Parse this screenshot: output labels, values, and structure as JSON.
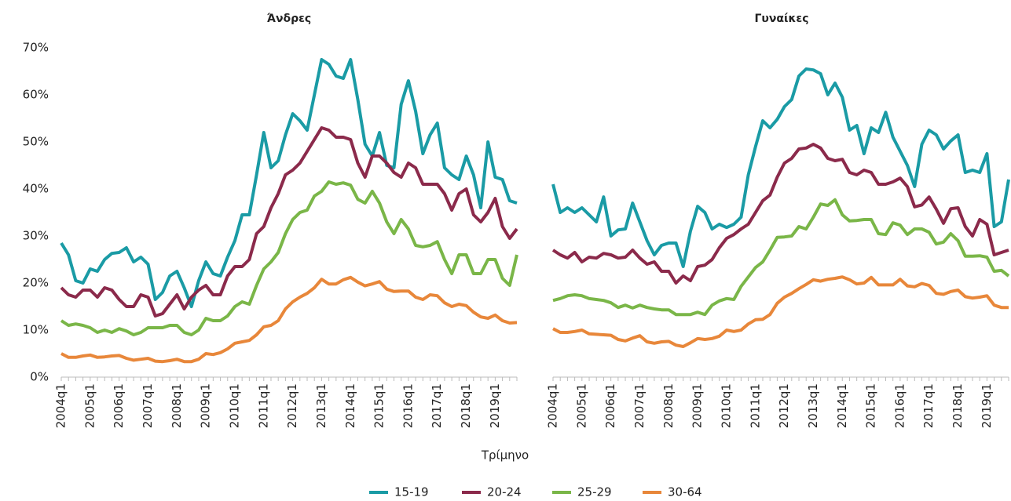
{
  "chart_data": [
    {
      "type": "line",
      "title": "Άνδρες",
      "xlabel": "Τρίμηνο",
      "categories": [
        "2004q1",
        null,
        null,
        null,
        "2005q1",
        null,
        null,
        null,
        "2006q1",
        null,
        null,
        null,
        "2007q1",
        null,
        null,
        null,
        "2008q1",
        null,
        null,
        null,
        "2009q1",
        null,
        null,
        null,
        "2010q1",
        null,
        null,
        null,
        "2011q1",
        null,
        null,
        null,
        "2012q1",
        null,
        null,
        null,
        "2013q1",
        null,
        null,
        null,
        "2014q1",
        null,
        null,
        null,
        "2015q1",
        null,
        null,
        null,
        "2016q1",
        null,
        null,
        null,
        "2017q1",
        null,
        null,
        null,
        "2018q1",
        null,
        null,
        null,
        "2019q1",
        null,
        null,
        null
      ],
      "ylim": [
        0,
        70
      ],
      "yticks": [
        {
          "value": 0,
          "label": "0%"
        },
        {
          "value": 10,
          "label": "10%"
        },
        {
          "value": 20,
          "label": "20%"
        },
        {
          "value": 30,
          "label": "30%"
        },
        {
          "value": 40,
          "label": "40%"
        },
        {
          "value": 50,
          "label": "50%"
        },
        {
          "value": 60,
          "label": "60%"
        },
        {
          "value": 70,
          "label": "70%"
        }
      ],
      "series": [
        {
          "name": "15-19",
          "color": "#1a9ba5",
          "values": [
            28.5,
            26,
            20.5,
            20,
            23,
            22.5,
            25,
            26.3,
            26.5,
            27.5,
            24.5,
            25.5,
            24,
            16.5,
            18,
            21.5,
            22.5,
            19,
            15,
            20.5,
            24.5,
            22,
            21.5,
            25.5,
            29,
            34.5,
            34.5,
            43,
            52,
            44.5,
            46,
            51.5,
            56,
            54.5,
            52.5,
            60,
            67.5,
            66.5,
            64,
            63.5,
            67.5,
            59,
            49.5,
            47,
            52,
            45,
            44.5,
            58,
            63,
            56.5,
            47.5,
            51.5,
            54,
            44.5,
            43,
            42,
            47,
            43,
            36,
            50,
            42.5,
            42,
            37.5,
            37
          ]
        },
        {
          "name": "20-24",
          "color": "#8b2a4b",
          "values": [
            19,
            17.5,
            17,
            18.5,
            18.5,
            17,
            19,
            18.5,
            16.5,
            15,
            15,
            17.5,
            17,
            13,
            13.5,
            15.5,
            17.5,
            14.5,
            17,
            18.5,
            19.5,
            17.5,
            17.5,
            21.5,
            23.5,
            23.5,
            25,
            30.5,
            32,
            36,
            39,
            43,
            44,
            45.5,
            48,
            50.5,
            53,
            52.5,
            51,
            51,
            50.5,
            45.5,
            42.5,
            47,
            47,
            45.5,
            43.5,
            42.5,
            45.5,
            44.5,
            41,
            41,
            41,
            39,
            35.5,
            39,
            40,
            34.5,
            33,
            35,
            38,
            32,
            29.5,
            31.5
          ]
        },
        {
          "name": "25-29",
          "color": "#7ab648",
          "values": [
            12,
            11,
            11.3,
            11,
            10.5,
            9.5,
            10,
            9.5,
            10.3,
            9.8,
            9,
            9.5,
            10.5,
            10.5,
            10.5,
            11,
            11,
            9.5,
            9,
            10,
            12.5,
            12,
            12,
            13,
            15,
            16,
            15.5,
            19.5,
            23,
            24.5,
            26.5,
            30.5,
            33.5,
            35,
            35.5,
            38.5,
            39.5,
            41.5,
            41,
            41.3,
            40.8,
            37.8,
            37,
            39.5,
            37,
            33,
            30.5,
            33.5,
            31.5,
            28,
            27.7,
            28,
            28.8,
            25,
            22,
            26,
            26,
            22,
            22,
            25,
            25,
            21,
            19.5,
            26
          ]
        },
        {
          "name": "30-64",
          "color": "#e8873a",
          "values": [
            5,
            4.2,
            4.2,
            4.5,
            4.7,
            4.2,
            4.3,
            4.5,
            4.6,
            4,
            3.6,
            3.8,
            4,
            3.4,
            3.3,
            3.5,
            3.8,
            3.3,
            3.3,
            3.8,
            5,
            4.8,
            5.2,
            6,
            7.2,
            7.5,
            7.8,
            9,
            10.7,
            11,
            12,
            14.5,
            16,
            17,
            17.8,
            19,
            20.8,
            19.8,
            19.8,
            20.7,
            21.2,
            20.2,
            19.4,
            19.8,
            20.3,
            18.7,
            18.2,
            18.3,
            18.3,
            17,
            16.5,
            17.5,
            17.3,
            15.8,
            15,
            15.5,
            15.2,
            13.8,
            12.8,
            12.5,
            13.2,
            12,
            11.5,
            11.6
          ]
        }
      ]
    },
    {
      "type": "line",
      "title": "Γυναίκες",
      "categories": [
        "2004q1",
        null,
        null,
        null,
        "2005q1",
        null,
        null,
        null,
        "2006q1",
        null,
        null,
        null,
        "2007q1",
        null,
        null,
        null,
        "2008q1",
        null,
        null,
        null,
        "2009q1",
        null,
        null,
        null,
        "2010q1",
        null,
        null,
        null,
        "2011q1",
        null,
        null,
        null,
        "2012q1",
        null,
        null,
        null,
        "2013q1",
        null,
        null,
        null,
        "2014q1",
        null,
        null,
        null,
        "2015q1",
        null,
        null,
        null,
        "2016q1",
        null,
        null,
        null,
        "2017q1",
        null,
        null,
        null,
        "2018q1",
        null,
        null,
        null,
        "2019q1",
        null,
        null,
        null
      ],
      "ylim": [
        0,
        70
      ],
      "series": [
        {
          "name": "15-19",
          "color": "#1a9ba5",
          "values": [
            41,
            35,
            36,
            35,
            36,
            34.5,
            33,
            38.3,
            30,
            31.3,
            31.5,
            37,
            33,
            29,
            26,
            28,
            28.5,
            28.5,
            23.5,
            31,
            36.3,
            35,
            31.5,
            32.5,
            31.8,
            32.5,
            34,
            43,
            49,
            54.5,
            53,
            54.8,
            57.5,
            59,
            64,
            65.5,
            65.3,
            64.5,
            60,
            62.5,
            59.5,
            52.5,
            53.5,
            47.5,
            53,
            52,
            56.3,
            51,
            48,
            45,
            40.5,
            49.5,
            52.5,
            51.5,
            48.5,
            50.2,
            51.5,
            43.5,
            44,
            43.5,
            47.5,
            32,
            33,
            42
          ]
        },
        {
          "name": "20-24",
          "color": "#8b2a4b",
          "values": [
            27,
            26,
            25.3,
            26.5,
            24.5,
            25.5,
            25.3,
            26.3,
            26,
            25.3,
            25.5,
            27,
            25.3,
            24,
            24.5,
            22.5,
            22.5,
            20,
            21.5,
            20.5,
            23.5,
            23.8,
            25,
            27.5,
            29.5,
            30.3,
            31.5,
            32.5,
            35,
            37.5,
            38.7,
            42.5,
            45.5,
            46.5,
            48.5,
            48.7,
            49.5,
            48.7,
            46.5,
            46,
            46.3,
            43.5,
            43,
            44,
            43.5,
            41,
            41,
            41.5,
            42.3,
            40.5,
            36.2,
            36.6,
            38.3,
            35.7,
            32.7,
            35.8,
            36,
            32,
            30,
            33.5,
            32.5,
            26,
            26.5,
            27
          ]
        },
        {
          "name": "25-29",
          "color": "#7ab648",
          "values": [
            16.3,
            16.7,
            17.3,
            17.5,
            17.3,
            16.7,
            16.5,
            16.3,
            15.8,
            14.8,
            15.3,
            14.7,
            15.3,
            14.8,
            14.5,
            14.3,
            14.3,
            13.3,
            13.3,
            13.3,
            13.8,
            13.3,
            15.3,
            16.2,
            16.7,
            16.5,
            19.3,
            21.3,
            23.3,
            24.5,
            27,
            29.7,
            29.8,
            30,
            32,
            31.5,
            34,
            36.8,
            36.5,
            37.7,
            34.5,
            33.2,
            33.3,
            33.5,
            33.5,
            30.5,
            30.3,
            32.8,
            32.3,
            30.3,
            31.5,
            31.5,
            30.8,
            28.3,
            28.7,
            30.5,
            29,
            25.7,
            25.7,
            25.8,
            25.5,
            22.5,
            22.7,
            21.5
          ]
        },
        {
          "name": "30-64",
          "color": "#e8873a",
          "values": [
            10.3,
            9.5,
            9.5,
            9.7,
            10,
            9.2,
            9.1,
            9,
            8.9,
            8,
            7.7,
            8.3,
            8.8,
            7.5,
            7.2,
            7.5,
            7.6,
            6.8,
            6.5,
            7.3,
            8.2,
            8,
            8.2,
            8.7,
            10,
            9.7,
            10,
            11.3,
            12.2,
            12.3,
            13.3,
            15.7,
            17,
            17.8,
            18.8,
            19.7,
            20.7,
            20.4,
            20.8,
            21,
            21.3,
            20.7,
            19.8,
            20,
            21.2,
            19.6,
            19.6,
            19.6,
            20.8,
            19.4,
            19.2,
            19.9,
            19.5,
            17.8,
            17.6,
            18.2,
            18.5,
            17.1,
            16.8,
            17,
            17.3,
            15.3,
            14.8,
            14.8
          ]
        }
      ]
    }
  ]
}
